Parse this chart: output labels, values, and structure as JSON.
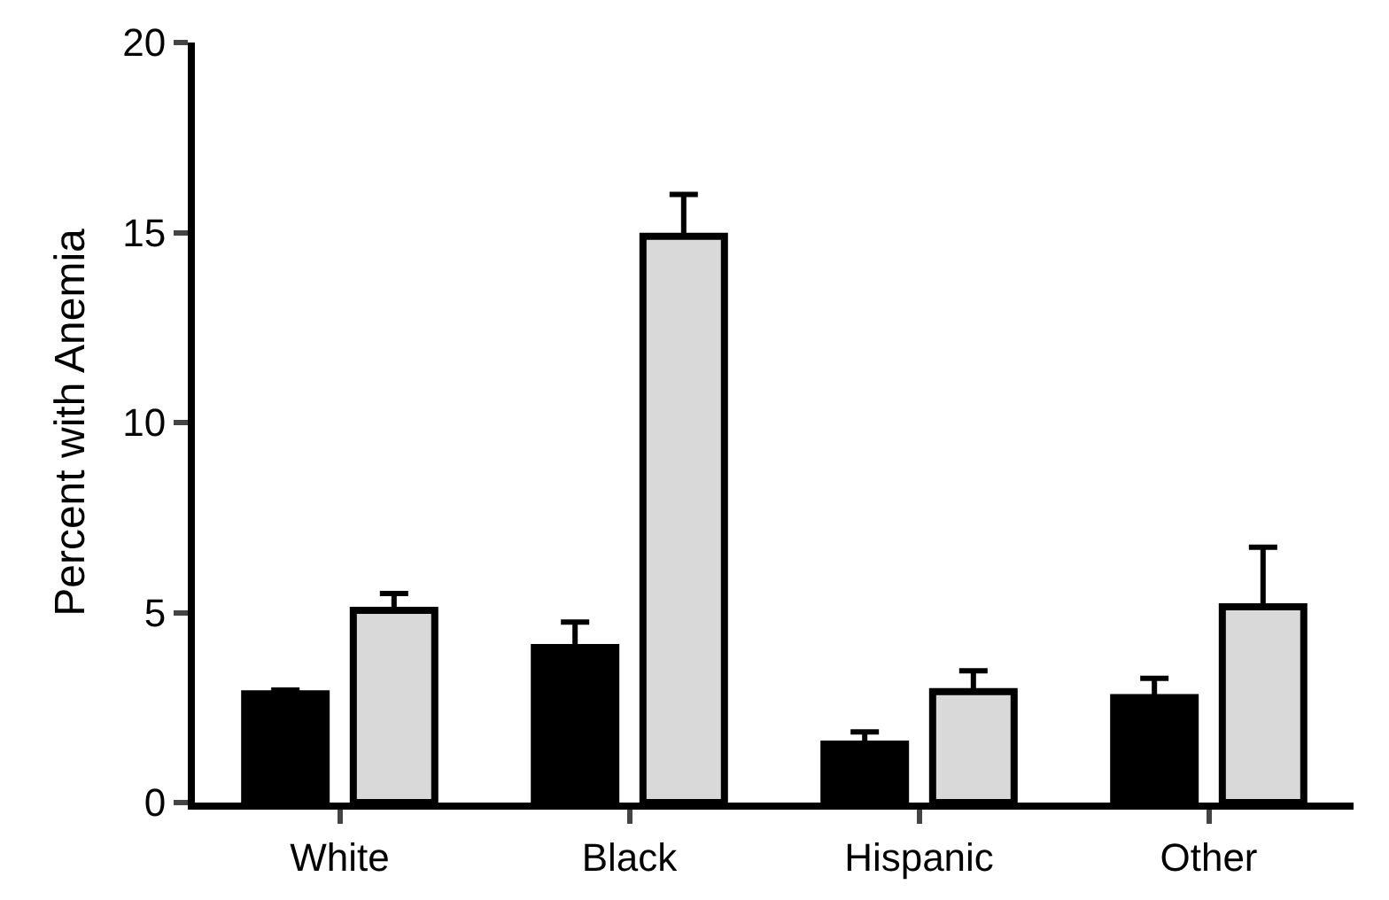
{
  "chart_data": {
    "type": "bar",
    "ylabel": "Percent with Anemia",
    "categories": [
      "White",
      "Black",
      "Hispanic",
      "Other"
    ],
    "series": [
      {
        "color": "#000000",
        "values": [
          2.86,
          4.08,
          1.54,
          2.76
        ],
        "errors": [
          [
            2.86,
            2.96
          ],
          [
            4.08,
            4.75
          ],
          [
            1.54,
            1.86
          ],
          [
            2.76,
            3.27
          ]
        ]
      },
      {
        "color": "#d9d9d9",
        "values": [
          5.06,
          14.9,
          2.92,
          5.15
        ],
        "errors": [
          [
            5.06,
            5.5
          ],
          [
            14.9,
            16.0
          ],
          [
            2.92,
            3.47
          ],
          [
            5.15,
            6.72
          ]
        ]
      }
    ],
    "ylim": [
      0,
      20
    ],
    "yticks": [
      0,
      5,
      10,
      15,
      20
    ]
  }
}
